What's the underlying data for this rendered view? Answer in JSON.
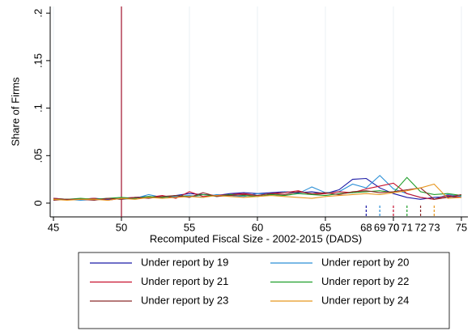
{
  "chart_data": {
    "type": "line",
    "x_label": "Recomputed Fiscal Size - 2002-2015 (DADS)",
    "y_label": "Share of Firms",
    "x": [
      45,
      46,
      47,
      48,
      49,
      50,
      51,
      52,
      53,
      54,
      55,
      56,
      57,
      58,
      59,
      60,
      61,
      62,
      63,
      64,
      65,
      66,
      67,
      68,
      69,
      70,
      71,
      72,
      73,
      74,
      75
    ],
    "series": [
      {
        "name": "Under report by 19",
        "color": "#1a1aa6",
        "cutoff": 68,
        "values": [
          0.005,
          0.004,
          0.004,
          0.005,
          0.004,
          0.005,
          0.006,
          0.007,
          0.006,
          0.008,
          0.01,
          0.009,
          0.008,
          0.01,
          0.011,
          0.01,
          0.011,
          0.012,
          0.011,
          0.012,
          0.01,
          0.014,
          0.025,
          0.026,
          0.016,
          0.01,
          0.006,
          0.004,
          0.006,
          0.007,
          0.006
        ]
      },
      {
        "name": "Under report by 20",
        "color": "#2b8fd6",
        "cutoff": 69,
        "values": [
          0.004,
          0.004,
          0.003,
          0.004,
          0.005,
          0.004,
          0.005,
          0.009,
          0.006,
          0.007,
          0.008,
          0.006,
          0.009,
          0.008,
          0.007,
          0.01,
          0.009,
          0.012,
          0.01,
          0.017,
          0.011,
          0.012,
          0.02,
          0.016,
          0.029,
          0.015,
          0.01,
          0.006,
          0.004,
          0.009,
          0.007
        ]
      },
      {
        "name": "Under report by 21",
        "color": "#c8102e",
        "cutoff": 70,
        "values": [
          0.005,
          0.004,
          0.004,
          0.005,
          0.003,
          0.005,
          0.006,
          0.006,
          0.008,
          0.005,
          0.012,
          0.007,
          0.008,
          0.009,
          0.01,
          0.008,
          0.01,
          0.011,
          0.013,
          0.009,
          0.01,
          0.012,
          0.011,
          0.015,
          0.018,
          0.021,
          0.01,
          0.006,
          0.004,
          0.008,
          0.006
        ]
      },
      {
        "name": "Under report by 22",
        "color": "#1f9e2a",
        "cutoff": 71,
        "values": [
          0.004,
          0.004,
          0.005,
          0.004,
          0.005,
          0.006,
          0.005,
          0.007,
          0.006,
          0.008,
          0.007,
          0.009,
          0.007,
          0.009,
          0.008,
          0.007,
          0.009,
          0.008,
          0.01,
          0.009,
          0.008,
          0.01,
          0.011,
          0.012,
          0.013,
          0.011,
          0.027,
          0.012,
          0.009,
          0.01,
          0.008
        ]
      },
      {
        "name": "Under report by 23",
        "color": "#8b2a2a",
        "cutoff": 72,
        "values": [
          0.003,
          0.004,
          0.004,
          0.003,
          0.005,
          0.004,
          0.006,
          0.005,
          0.007,
          0.008,
          0.006,
          0.011,
          0.007,
          0.008,
          0.009,
          0.008,
          0.01,
          0.009,
          0.012,
          0.01,
          0.011,
          0.009,
          0.012,
          0.013,
          0.011,
          0.012,
          0.014,
          0.016,
          0.004,
          0.006,
          0.009
        ]
      },
      {
        "name": "Under report by 24",
        "color": "#e8961e",
        "cutoff": 73,
        "values": [
          0.004,
          0.003,
          0.004,
          0.004,
          0.003,
          0.005,
          0.004,
          0.006,
          0.005,
          0.006,
          0.007,
          0.006,
          0.008,
          0.007,
          0.006,
          0.007,
          0.008,
          0.007,
          0.006,
          0.005,
          0.007,
          0.008,
          0.009,
          0.01,
          0.009,
          0.011,
          0.013,
          0.016,
          0.02,
          0.005,
          0.006
        ]
      }
    ],
    "vline": 50,
    "vline_color": "#a0102a",
    "xlim": [
      44.76,
      75.48
    ],
    "xticks": [
      45,
      50,
      55,
      60,
      65,
      70,
      75
    ],
    "ylim": [
      -0.0145,
      0.207
    ],
    "yticks": [
      0,
      {
        "value": 0.05,
        "label": ".05"
      },
      {
        "value": 0.1,
        "label": ".1"
      },
      {
        "value": 0.15,
        "label": ".15"
      },
      {
        "value": 0.2,
        "label": ".2"
      }
    ],
    "grid": "x"
  }
}
